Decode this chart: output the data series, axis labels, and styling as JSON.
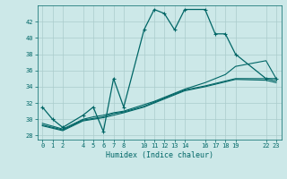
{
  "xlabel": "Humidex (Indice chaleur)",
  "bg_color": "#cce8e8",
  "grid_color": "#aacccc",
  "line_color": "#006666",
  "xlim": [
    -0.5,
    23.5
  ],
  "ylim": [
    27.5,
    44
  ],
  "xticks": [
    0,
    1,
    2,
    4,
    5,
    6,
    7,
    8,
    10,
    11,
    12,
    13,
    14,
    16,
    17,
    18,
    19,
    22,
    23
  ],
  "xtick_labels": [
    "0",
    "1",
    "2",
    "4",
    "5",
    "6",
    "7",
    "8",
    "10",
    "11",
    "12",
    "13",
    "14",
    "16",
    "17",
    "18",
    "19",
    "22",
    "23"
  ],
  "yticks": [
    28,
    30,
    32,
    34,
    36,
    38,
    40,
    42
  ],
  "series": [
    {
      "x": [
        0,
        1,
        2,
        4,
        5,
        6,
        7,
        8,
        10,
        11,
        12,
        13,
        14,
        16,
        17,
        18,
        19,
        22,
        23
      ],
      "y": [
        31.5,
        30.0,
        29.0,
        30.5,
        31.5,
        28.5,
        35.0,
        31.5,
        41.0,
        43.5,
        43.0,
        41.0,
        43.5,
        43.5,
        40.5,
        40.5,
        38.0,
        35.0,
        35.0
      ],
      "marker": true,
      "lw": 0.9
    },
    {
      "x": [
        0,
        2,
        4,
        5,
        6,
        7,
        8,
        10,
        11,
        12,
        13,
        14,
        16,
        17,
        18,
        19,
        22,
        23
      ],
      "y": [
        29.5,
        28.8,
        30.0,
        30.3,
        30.5,
        30.8,
        31.0,
        31.8,
        32.2,
        32.7,
        33.2,
        33.7,
        34.5,
        35.0,
        35.5,
        36.5,
        37.2,
        35.0
      ],
      "marker": false,
      "lw": 0.8
    },
    {
      "x": [
        0,
        2,
        4,
        5,
        6,
        7,
        8,
        10,
        11,
        12,
        13,
        14,
        16,
        17,
        18,
        19,
        22,
        23
      ],
      "y": [
        29.2,
        28.6,
        29.8,
        30.0,
        30.2,
        30.5,
        30.8,
        31.5,
        32.0,
        32.5,
        33.0,
        33.5,
        34.0,
        34.3,
        34.6,
        34.9,
        34.8,
        34.5
      ],
      "marker": false,
      "lw": 0.8
    },
    {
      "x": [
        0,
        2,
        4,
        5,
        6,
        7,
        8,
        10,
        11,
        12,
        13,
        14,
        16,
        17,
        18,
        19,
        22,
        23
      ],
      "y": [
        29.3,
        28.7,
        29.9,
        30.1,
        30.3,
        30.7,
        30.9,
        31.6,
        32.1,
        32.6,
        33.1,
        33.6,
        34.1,
        34.4,
        34.7,
        35.0,
        35.0,
        34.7
      ],
      "marker": false,
      "lw": 0.8
    }
  ]
}
